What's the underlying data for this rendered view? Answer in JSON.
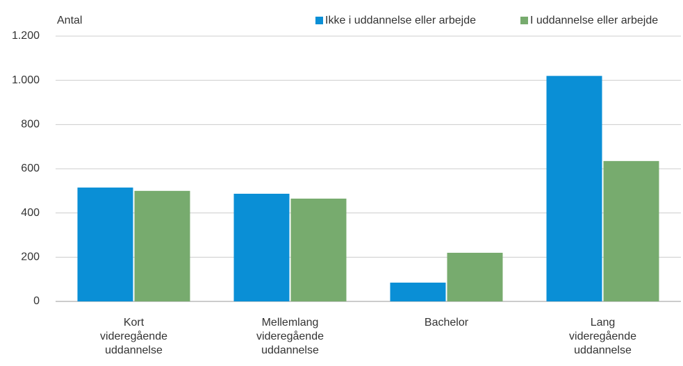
{
  "chart_data": {
    "type": "bar",
    "y_label": "Antal",
    "categories": [
      "Kort videregående uddannelse",
      "Mellemlang videregående uddannelse",
      "Bachelor",
      "Lang videregående uddannelse"
    ],
    "series": [
      {
        "name": "Ikke i uddannelse eller arbejde",
        "color": "#0a8fd6",
        "values": [
          515,
          487,
          85,
          1020
        ]
      },
      {
        "name": "I uddannelse eller arbejde",
        "color": "#77ab6e",
        "values": [
          500,
          465,
          220,
          635
        ]
      }
    ],
    "ylim": [
      0,
      1200
    ],
    "yticks": [
      0,
      200,
      400,
      600,
      800,
      {
        "value": 1000,
        "label": "1.000"
      },
      {
        "value": 1200,
        "label": "1.200"
      }
    ],
    "grid": true,
    "legend": "top-right"
  }
}
